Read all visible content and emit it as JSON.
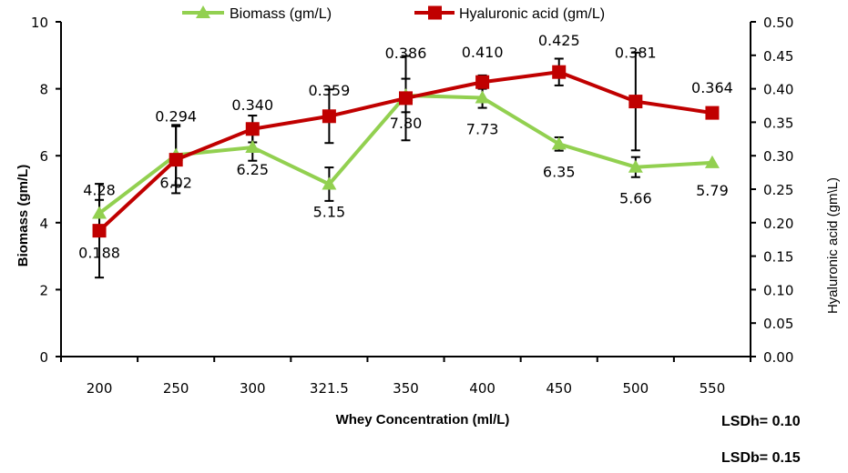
{
  "chart_data": {
    "type": "line",
    "xlabel": "Whey Concentration (ml/L)",
    "categories": [
      "200",
      "250",
      "300",
      "321.5",
      "350",
      "400",
      "450",
      "500",
      "550"
    ],
    "y_left": {
      "label": "Biomass (gm/L)",
      "ylim": [
        0,
        10
      ],
      "ticks": [
        "0",
        "2",
        "4",
        "6",
        "8",
        "10"
      ]
    },
    "y_right": {
      "label": "Hyaluronic acid (gm\\L)",
      "ylim": [
        0,
        0.5
      ],
      "ticks": [
        "0.00",
        "0.05",
        "0.10",
        "0.15",
        "0.20",
        "0.25",
        "0.30",
        "0.35",
        "0.40",
        "0.45",
        "0.50"
      ]
    },
    "series": [
      {
        "name": "Biomass (gm/L)",
        "axis": "left",
        "color": "#92D050",
        "marker": "triangle",
        "values": [
          4.28,
          6.02,
          6.25,
          5.15,
          7.8,
          7.73,
          6.35,
          5.66,
          5.79
        ],
        "labels": [
          "4.28",
          "6.02",
          "6.25",
          "5.15",
          "7.80",
          "7.73",
          "6.35",
          "5.66",
          "5.79"
        ],
        "error": [
          0.4,
          0.9,
          0.4,
          0.5,
          0.5,
          0.3,
          0.2,
          0.3,
          null
        ]
      },
      {
        "name": "Hyaluronic acid (gm/L)",
        "axis": "right",
        "color": "#C00000",
        "marker": "square",
        "values": [
          0.188,
          0.294,
          0.34,
          0.359,
          0.386,
          0.41,
          0.425,
          0.381,
          0.364
        ],
        "labels": [
          "0.188",
          "0.294",
          "0.340",
          "0.359",
          "0.386",
          "0.410",
          "0.425",
          "0.381",
          "0.364"
        ],
        "error": [
          0.07,
          0.05,
          0.02,
          0.04,
          0.063,
          0.01,
          0.02,
          0.073,
          null
        ]
      }
    ],
    "legend": "top",
    "grid": false
  },
  "annotations": {
    "lsd_h": "LSDh= 0.10",
    "lsd_b": "LSDb= 0.15"
  }
}
